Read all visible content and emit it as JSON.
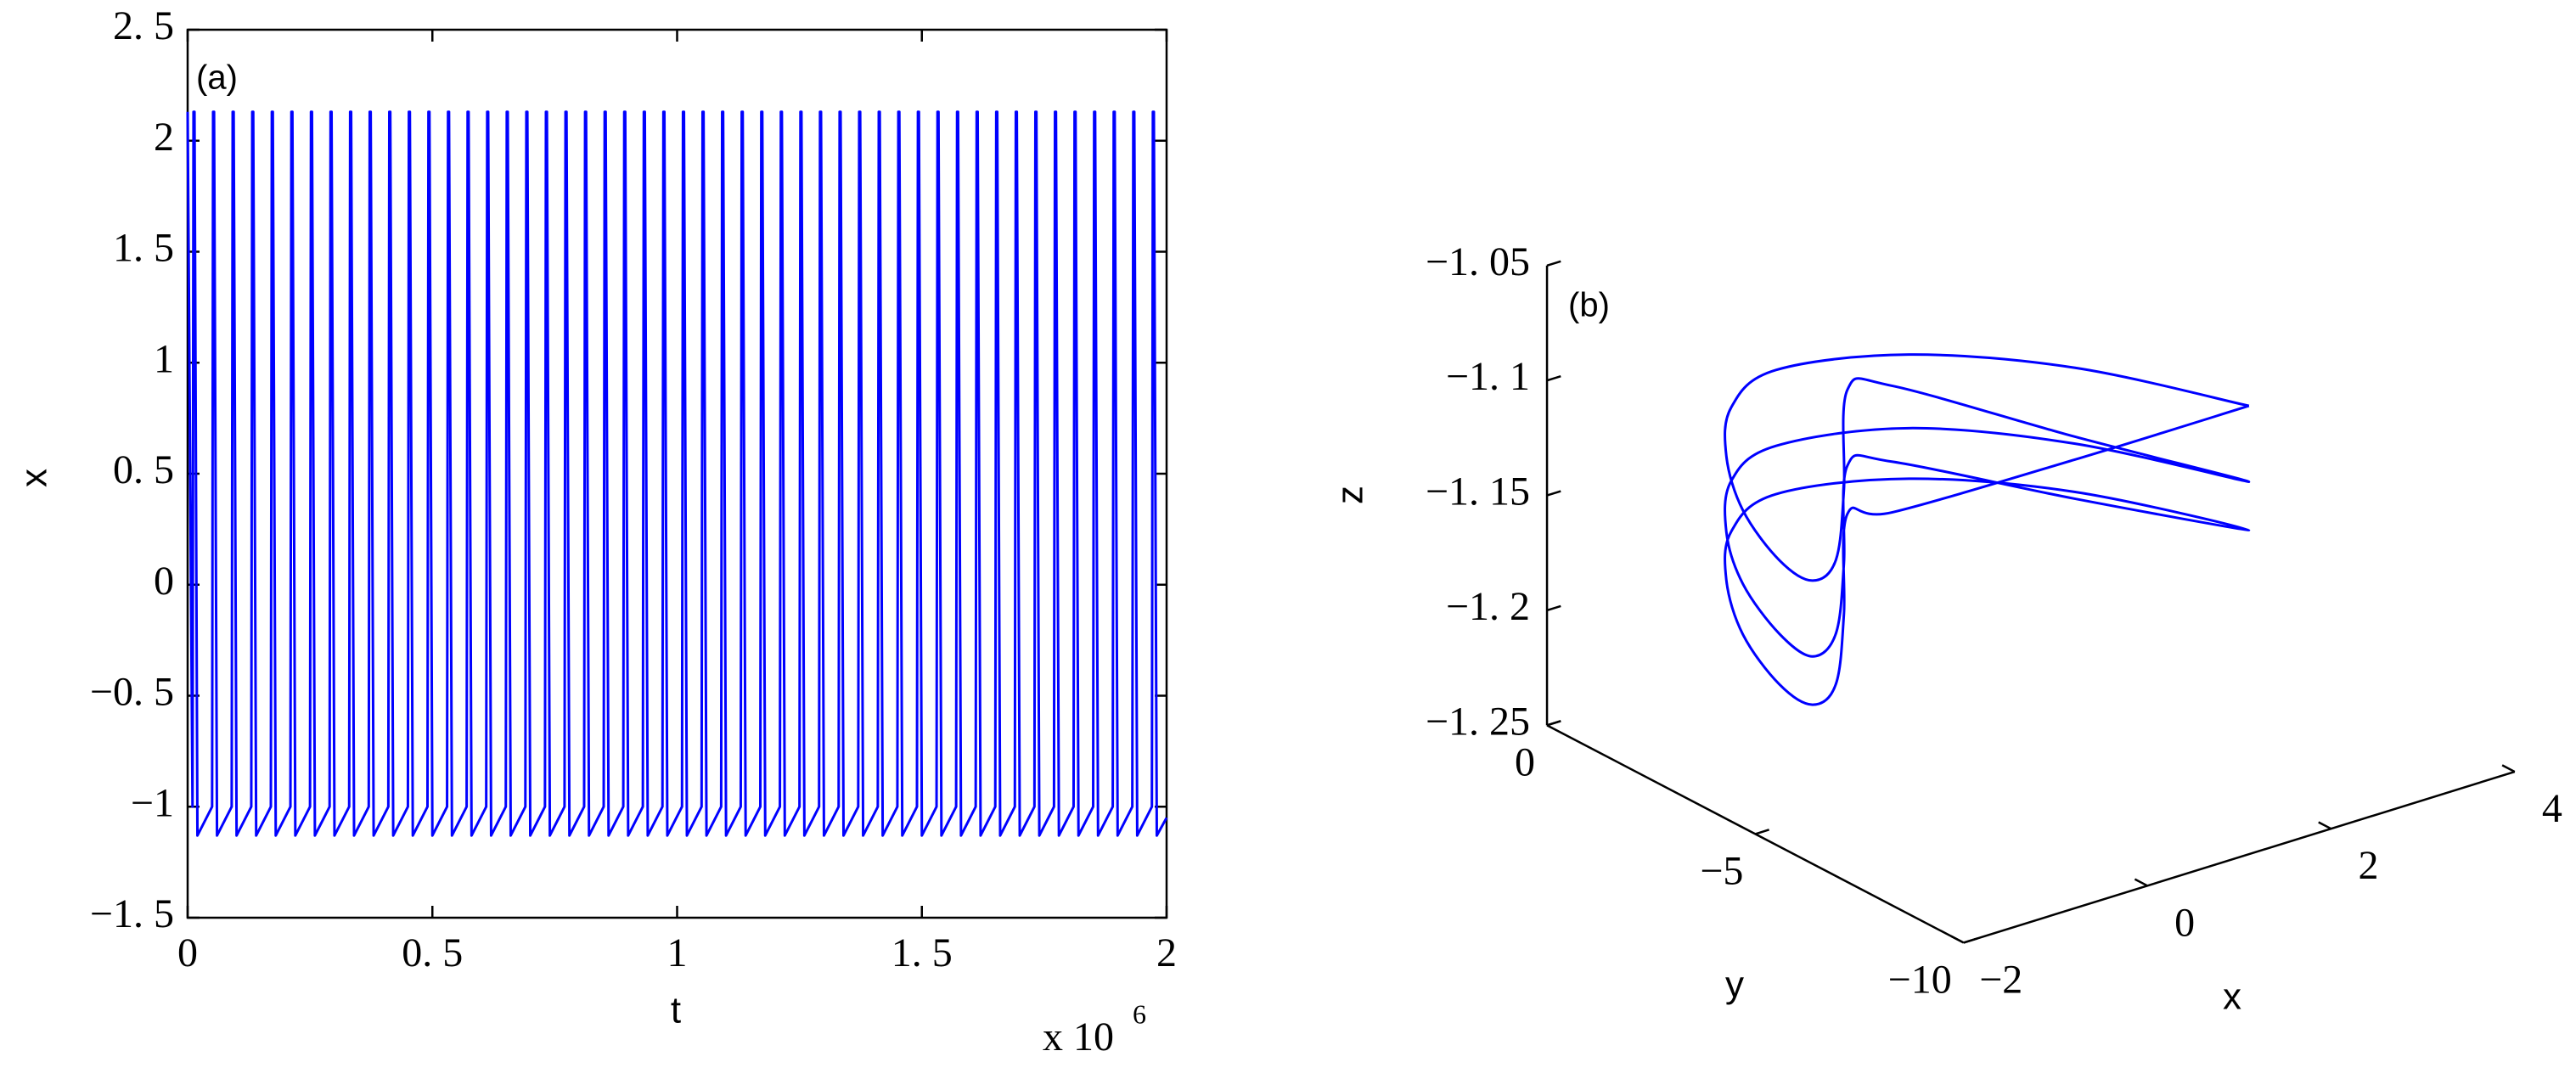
{
  "chart_data": [
    {
      "type": "line",
      "panel_label": "(a)",
      "xlabel": "t",
      "ylabel": "x",
      "xscale_label": "x 10",
      "xscale_exponent": "6",
      "color": "#0000ff",
      "xlim": [
        0,
        2
      ],
      "ylim": [
        -1.5,
        2.5
      ],
      "xticks": [
        0,
        {
          "value": 0.5,
          "label": "0. 5"
        },
        1,
        {
          "value": 1.5,
          "label": "1. 5"
        },
        2
      ],
      "yticks": [
        {
          "value": 2.5,
          "label": "2. 5"
        },
        2,
        {
          "value": 1.5,
          "label": "1. 5"
        },
        1,
        {
          "value": 0.5,
          "label": "0. 5"
        },
        0,
        {
          "value": -0.5,
          "label": "−0. 5"
        },
        {
          "value": -1,
          "label": "−1"
        },
        {
          "value": -1.5,
          "label": "−1. 5"
        }
      ],
      "x": [
        0,
        0.01,
        0.012,
        0.014,
        0.02,
        0.05,
        0.052,
        0.054,
        0.06,
        0.09,
        0.092,
        0.094,
        0.1,
        0.13,
        0.132,
        0.134,
        0.14,
        0.17,
        0.172,
        0.174,
        0.18,
        0.21,
        0.212,
        0.214,
        0.22,
        0.25,
        0.252,
        0.254,
        0.26,
        0.29,
        0.292,
        0.294,
        0.3,
        0.33,
        0.332,
        0.334,
        0.34,
        0.37,
        0.372,
        0.374,
        0.38,
        0.41,
        0.412,
        0.414,
        0.42,
        0.45,
        0.452,
        0.454,
        0.46,
        0.49,
        0.492,
        0.494,
        0.5,
        0.53,
        0.532,
        0.534,
        0.54,
        0.57,
        0.572,
        0.574,
        0.58,
        0.61,
        0.612,
        0.614,
        0.62,
        0.65,
        0.652,
        0.654,
        0.66,
        0.69,
        0.692,
        0.694,
        0.7,
        0.73,
        0.732,
        0.734,
        0.74,
        0.77,
        0.772,
        0.774,
        0.78,
        0.81,
        0.812,
        0.814,
        0.82,
        0.85,
        0.852,
        0.854,
        0.86,
        0.89,
        0.892,
        0.894,
        0.9,
        0.93,
        0.932,
        0.934,
        0.94,
        0.97,
        0.972,
        0.974,
        0.98,
        1.01,
        1.012,
        1.014,
        1.02,
        1.05,
        1.052,
        1.054,
        1.06,
        1.09,
        1.092,
        1.094,
        1.1,
        1.13,
        1.132,
        1.134,
        1.14,
        1.17,
        1.172,
        1.174,
        1.18,
        1.21,
        1.212,
        1.214,
        1.22,
        1.25,
        1.252,
        1.254,
        1.26,
        1.29,
        1.292,
        1.294,
        1.3,
        1.33,
        1.332,
        1.334,
        1.34,
        1.37,
        1.372,
        1.374,
        1.38,
        1.41,
        1.412,
        1.414,
        1.42,
        1.45,
        1.452,
        1.454,
        1.46,
        1.49,
        1.492,
        1.494,
        1.5,
        1.53,
        1.532,
        1.534,
        1.54,
        1.57,
        1.572,
        1.574,
        1.58,
        1.61,
        1.612,
        1.614,
        1.62,
        1.65,
        1.652,
        1.654,
        1.66,
        1.69,
        1.692,
        1.694,
        1.7,
        1.73,
        1.732,
        1.734,
        1.74,
        1.77,
        1.772,
        1.774,
        1.78,
        1.81,
        1.812,
        1.814,
        1.82,
        1.85,
        1.852,
        1.854,
        1.86,
        1.89,
        1.892,
        1.894,
        1.9,
        1.93,
        1.932,
        1.934,
        1.94,
        1.97,
        1.972,
        1.974,
        1.98,
        2
      ],
      "values": [
        2.13,
        -1,
        2.13,
        2.13,
        -1.13,
        -1,
        2.13,
        2.13,
        -1.13,
        -1,
        2.13,
        2.13,
        -1.13,
        -1,
        2.13,
        2.13,
        -1.13,
        -1,
        2.13,
        2.13,
        -1.13,
        -1,
        2.13,
        2.13,
        -1.13,
        -1,
        2.13,
        2.13,
        -1.13,
        -1,
        2.13,
        2.13,
        -1.13,
        -1,
        2.13,
        2.13,
        -1.13,
        -1,
        2.13,
        2.13,
        -1.13,
        -1,
        2.13,
        2.13,
        -1.13,
        -1,
        2.13,
        2.13,
        -1.13,
        -1,
        2.13,
        2.13,
        -1.13,
        -1,
        2.13,
        2.13,
        -1.13,
        -1,
        2.13,
        2.13,
        -1.13,
        -1,
        2.13,
        2.13,
        -1.13,
        -1,
        2.13,
        2.13,
        -1.13,
        -1,
        2.13,
        2.13,
        -1.13,
        -1,
        2.13,
        2.13,
        -1.13,
        -1,
        2.13,
        2.13,
        -1.13,
        -1,
        2.13,
        2.13,
        -1.13,
        -1,
        2.13,
        2.13,
        -1.13,
        -1,
        2.13,
        2.13,
        -1.13,
        -1,
        2.13,
        2.13,
        -1.13,
        -1,
        2.13,
        2.13,
        -1.13,
        -1,
        2.13,
        2.13,
        -1.13,
        -1,
        2.13,
        2.13,
        -1.13,
        -1,
        2.13,
        2.13,
        -1.13,
        -1,
        2.13,
        2.13,
        -1.13,
        -1,
        2.13,
        2.13,
        -1.13,
        -1,
        2.13,
        2.13,
        -1.13,
        -1,
        2.13,
        2.13,
        -1.13,
        -1,
        2.13,
        2.13,
        -1.13,
        -1,
        2.13,
        2.13,
        -1.13,
        -1,
        2.13,
        2.13,
        -1.13,
        -1,
        2.13,
        2.13,
        -1.13,
        -1,
        2.13,
        2.13,
        -1.13,
        -1,
        2.13,
        2.13,
        -1.13,
        -1,
        2.13,
        2.13,
        -1.13,
        -1,
        2.13,
        2.13,
        -1.13,
        -1,
        2.13,
        2.13,
        -1.13,
        -1,
        2.13,
        2.13,
        -1.13,
        -1,
        2.13,
        2.13,
        -1.13,
        -1,
        2.13,
        2.13,
        -1.13,
        -1,
        2.13,
        2.13,
        -1.13,
        -1,
        2.13,
        2.13,
        -1.13,
        -1,
        2.13,
        2.13,
        -1.13,
        -1,
        2.13,
        2.13,
        -1.13,
        -1,
        2.13,
        2.13,
        -1.13,
        -1,
        2.13,
        2.13,
        -1.13,
        -1.05
      ]
    },
    {
      "type": "line3d",
      "panel_label": "(b)",
      "xlabel": "x",
      "ylabel": "y",
      "zlabel": "z",
      "color": "#0000ff",
      "xlim": [
        -2,
        4
      ],
      "ylim": [
        -10,
        0
      ],
      "zlim": [
        -1.25,
        -1.05
      ],
      "xticks": [
        {
          "value": -2,
          "label": "−2"
        },
        0,
        2,
        4
      ],
      "yticks": [
        {
          "value": -10,
          "label": "−10"
        },
        {
          "value": -5,
          "label": "−5"
        },
        0
      ],
      "zticks": [
        {
          "value": -1.25,
          "label": "−1. 25"
        },
        {
          "value": -1.2,
          "label": "−1. 2"
        },
        {
          "value": -1.15,
          "label": "−1. 15"
        },
        {
          "value": -1.1,
          "label": "−1. 1"
        },
        {
          "value": -1.05,
          "label": "−1. 05"
        }
      ],
      "x": [
        2.1,
        1.2,
        0.3,
        -0.6,
        -1,
        -1.1,
        -1.1,
        -1.05,
        -1,
        -0.9,
        -0.5,
        0.2,
        0.8,
        1.5,
        2.1,
        1.2,
        0.3,
        -0.6,
        -1,
        -1.1,
        -1.1,
        -1.05,
        -1,
        -0.9,
        -0.5,
        0.2,
        0.8,
        1.5,
        2.1,
        1.2,
        0.3,
        -0.6,
        -1,
        -1.1,
        -1.1,
        -1.05,
        -1,
        -0.9,
        -0.5,
        0.2,
        0.8,
        1.5,
        2.1
      ],
      "y": [
        -7.81,
        -5.62,
        -3.62,
        -2.41,
        -2.22,
        -2.32,
        -2.72,
        -3.48,
        -4.17,
        -4.51,
        -3.82,
        -2.36,
        -2.12,
        -4.95,
        -7.81,
        -5.62,
        -3.62,
        -2.41,
        -2.22,
        -2.32,
        -2.72,
        -3.48,
        -4.17,
        -4.51,
        -3.82,
        -2.36,
        -2.12,
        -4.95,
        -7.81,
        -5.62,
        -3.62,
        -2.41,
        -2.22,
        -2.32,
        -2.72,
        -3.48,
        -4.17,
        -4.51,
        -3.82,
        -2.36,
        -2.12,
        -4.95,
        -7.81
      ],
      "z": [
        -1.088,
        -1.081,
        -1.083,
        -1.09,
        -1.103,
        -1.122,
        -1.142,
        -1.157,
        -1.16,
        -1.149,
        -1.13,
        -1.109,
        -1.117,
        -1.121,
        -1.121,
        -1.114,
        -1.115,
        -1.123,
        -1.135,
        -1.155,
        -1.174,
        -1.189,
        -1.193,
        -1.181,
        -1.162,
        -1.142,
        -1.15,
        -1.148,
        -1.142,
        -1.135,
        -1.137,
        -1.144,
        -1.157,
        -1.176,
        -1.196,
        -1.211,
        -1.214,
        -1.203,
        -1.184,
        -1.163,
        -1.172,
        -1.131,
        -1.088
      ]
    }
  ]
}
